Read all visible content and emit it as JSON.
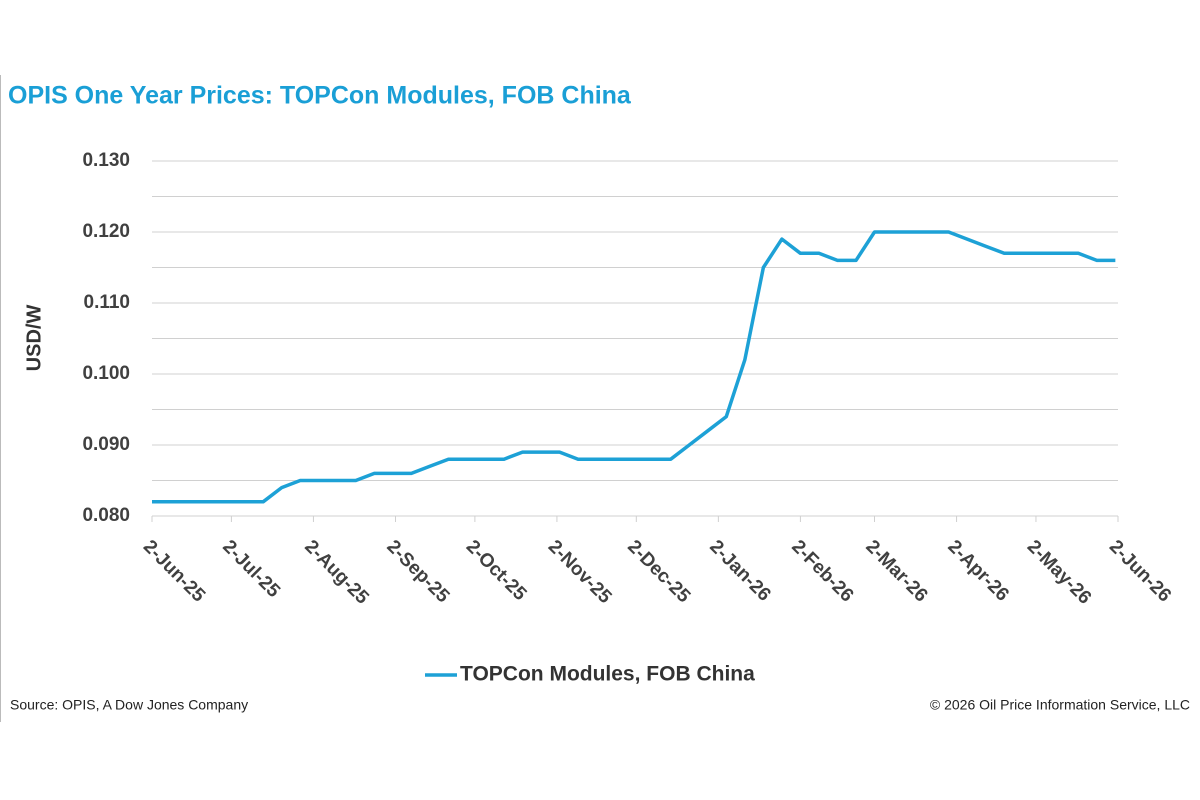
{
  "chart_data": {
    "type": "line",
    "title": "OPIS One Year Prices: TOPCon Modules, FOB China",
    "y_label": "USD/W",
    "source": "Source: OPIS, A Dow Jones Company",
    "copyright": "© 2026 Oil Price Information Service, LLC",
    "x": [
      "2025-06-02",
      "2025-06-09",
      "2025-06-16",
      "2025-06-23",
      "2025-06-30",
      "2025-07-07",
      "2025-07-14",
      "2025-07-21",
      "2025-07-28",
      "2025-08-04",
      "2025-08-11",
      "2025-08-18",
      "2025-08-25",
      "2025-09-01",
      "2025-09-08",
      "2025-09-15",
      "2025-09-22",
      "2025-09-29",
      "2025-10-06",
      "2025-10-13",
      "2025-10-20",
      "2025-10-27",
      "2025-11-03",
      "2025-11-10",
      "2025-11-17",
      "2025-11-24",
      "2025-12-01",
      "2025-12-08",
      "2025-12-15",
      "2025-12-22",
      "2025-12-29",
      "2026-01-05",
      "2026-01-12",
      "2026-01-19",
      "2026-01-26",
      "2026-02-02",
      "2026-02-09",
      "2026-02-16",
      "2026-02-23",
      "2026-03-02",
      "2026-03-09",
      "2026-03-16",
      "2026-03-23",
      "2026-03-30",
      "2026-04-06",
      "2026-04-13",
      "2026-04-20",
      "2026-04-27",
      "2026-05-04",
      "2026-05-11",
      "2026-05-18",
      "2026-05-25",
      "2026-06-01"
    ],
    "series": [
      {
        "name": "TOPCon Modules, FOB China",
        "color": "#1da1d6",
        "values": [
          0.082,
          0.082,
          0.082,
          0.082,
          0.082,
          0.082,
          0.082,
          0.084,
          0.085,
          0.085,
          0.085,
          0.085,
          0.086,
          0.086,
          0.086,
          0.087,
          0.088,
          0.088,
          0.088,
          0.088,
          0.089,
          0.089,
          0.089,
          0.088,
          0.088,
          0.088,
          0.088,
          0.088,
          0.088,
          0.09,
          0.092,
          0.094,
          0.102,
          0.115,
          0.119,
          0.117,
          0.117,
          0.116,
          0.116,
          0.12,
          0.12,
          0.12,
          0.12,
          0.12,
          0.119,
          0.118,
          0.117,
          0.117,
          0.117,
          0.117,
          0.117,
          0.116,
          0.116
        ]
      }
    ],
    "xlim": [
      "2025-06-02",
      "2026-06-02"
    ],
    "xticks": [
      {
        "value": "2025-06-02",
        "label": "2-Jun-25"
      },
      {
        "value": "2025-07-02",
        "label": "2-Jul-25"
      },
      {
        "value": "2025-08-02",
        "label": "2-Aug-25"
      },
      {
        "value": "2025-09-02",
        "label": "2-Sep-25"
      },
      {
        "value": "2025-10-02",
        "label": "2-Oct-25"
      },
      {
        "value": "2025-11-02",
        "label": "2-Nov-25"
      },
      {
        "value": "2025-12-02",
        "label": "2-Dec-25"
      },
      {
        "value": "2026-01-02",
        "label": "2-Jan-26"
      },
      {
        "value": "2026-02-02",
        "label": "2-Feb-26"
      },
      {
        "value": "2026-03-02",
        "label": "2-Mar-26"
      },
      {
        "value": "2026-04-02",
        "label": "2-Apr-26"
      },
      {
        "value": "2026-05-02",
        "label": "2-May-26"
      },
      {
        "value": "2026-06-02",
        "label": "2-Jun-26"
      }
    ],
    "ylim": [
      0.08,
      0.13
    ],
    "yticks": [
      {
        "value": 0.08,
        "label": "0.080"
      },
      {
        "value": 0.09,
        "label": "0.090"
      },
      {
        "value": 0.1,
        "label": "0.100"
      },
      {
        "value": 0.11,
        "label": "0.110"
      },
      {
        "value": 0.12,
        "label": "0.120"
      },
      {
        "value": 0.13,
        "label": "0.130"
      }
    ],
    "y_minor_gridlines": [
      0.085,
      0.095,
      0.105,
      0.115,
      0.125
    ],
    "grid": true,
    "legend": "bottom"
  }
}
